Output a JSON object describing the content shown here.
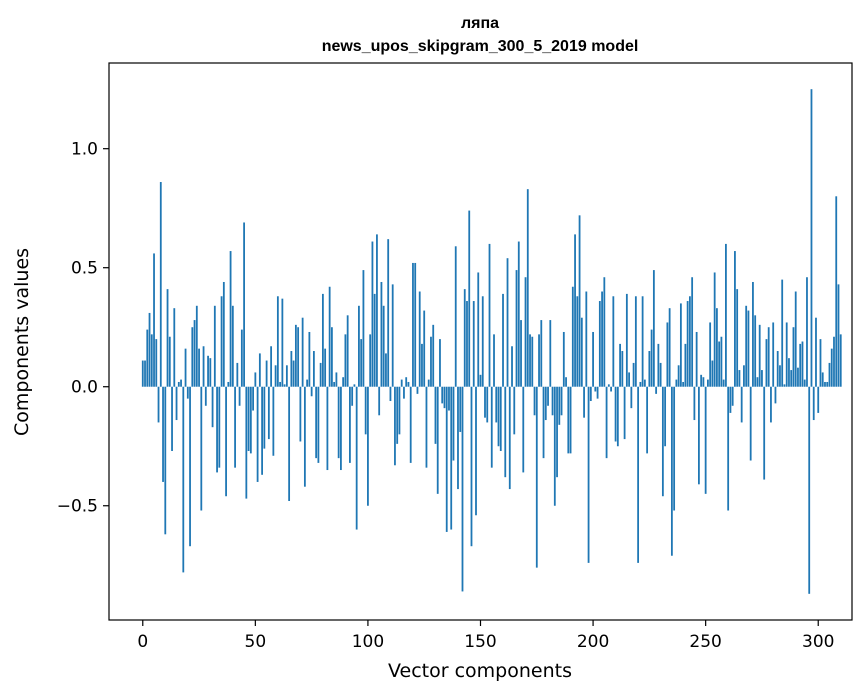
{
  "chart_data": {
    "type": "bar",
    "title": "ляпа",
    "subtitle": "news_upos_skipgram_300_5_2019 model",
    "xlabel": "Vector components",
    "ylabel": "Components values",
    "xlim": [
      -15,
      315
    ],
    "ylim": [
      -0.98,
      1.36
    ],
    "xticks": [
      0,
      50,
      100,
      150,
      200,
      250,
      300
    ],
    "xtick_labels": [
      "0",
      "50",
      "100",
      "150",
      "200",
      "250",
      "300"
    ],
    "yticks": [
      -0.5,
      0.0,
      0.5,
      1.0
    ],
    "ytick_labels": [
      "−0.5",
      "0.0",
      "0.5",
      "1.0"
    ],
    "grid": false,
    "bar_color": "#1f77b4",
    "values": [
      0.11,
      0.11,
      0.24,
      0.31,
      0.22,
      0.56,
      0.2,
      -0.15,
      0.86,
      -0.4,
      -0.62,
      0.41,
      0.21,
      -0.27,
      0.33,
      -0.14,
      0.02,
      0.03,
      -0.78,
      0.16,
      -0.05,
      -0.67,
      0.25,
      0.28,
      0.34,
      0.16,
      -0.52,
      0.17,
      -0.08,
      0.13,
      0.12,
      -0.17,
      0.34,
      -0.36,
      -0.34,
      0.38,
      0.44,
      -0.46,
      0.02,
      0.57,
      0.34,
      -0.34,
      0.1,
      -0.08,
      0.24,
      0.69,
      -0.47,
      -0.27,
      -0.28,
      -0.1,
      0.06,
      -0.4,
      0.14,
      -0.37,
      -0.26,
      0.11,
      -0.22,
      0.17,
      -0.29,
      0.09,
      0.38,
      0.02,
      0.37,
      0.01,
      0.09,
      -0.48,
      0.15,
      0.11,
      0.26,
      0.25,
      -0.23,
      0.29,
      -0.42,
      0.03,
      0.23,
      -0.04,
      0.15,
      -0.3,
      -0.32,
      0.1,
      0.39,
      0.16,
      -0.35,
      0.42,
      0.25,
      0.02,
      0.06,
      -0.3,
      -0.35,
      0.04,
      0.22,
      0.3,
      -0.32,
      -0.08,
      0.01,
      -0.6,
      0.34,
      0.2,
      0.49,
      -0.2,
      -0.5,
      0.22,
      0.61,
      0.39,
      0.64,
      -0.12,
      0.44,
      0.34,
      0.14,
      0.62,
      -0.06,
      0.43,
      -0.33,
      -0.24,
      -0.2,
      0.03,
      -0.05,
      0.04,
      0.02,
      -0.32,
      0.52,
      0.52,
      -0.03,
      0.4,
      0.18,
      0.32,
      -0.34,
      0.03,
      0.21,
      0.26,
      -0.24,
      -0.45,
      0.2,
      -0.07,
      -0.09,
      -0.61,
      -0.1,
      -0.6,
      -0.31,
      0.59,
      -0.43,
      -0.19,
      -0.86,
      0.41,
      0.36,
      0.74,
      -0.67,
      0.36,
      -0.54,
      0.48,
      0.05,
      0.38,
      -0.13,
      -0.15,
      0.6,
      -0.34,
      0.22,
      -0.15,
      -0.25,
      -0.27,
      0.39,
      -0.38,
      0.54,
      -0.43,
      0.17,
      -0.2,
      0.49,
      0.61,
      0.28,
      -0.36,
      0.46,
      0.83,
      0.22,
      0.21,
      -0.12,
      -0.76,
      0.22,
      0.28,
      -0.3,
      -0.14,
      -0.08,
      0.28,
      -0.12,
      -0.5,
      -0.38,
      -0.16,
      -0.12,
      0.23,
      0.04,
      -0.28,
      -0.28,
      0.42,
      0.64,
      0.38,
      0.72,
      0.29,
      -0.13,
      0.4,
      -0.74,
      -0.06,
      0.23,
      -0.02,
      -0.05,
      0.36,
      0.4,
      0.46,
      -0.3,
      0.01,
      -0.02,
      0.38,
      -0.23,
      -0.25,
      0.18,
      0.15,
      -0.22,
      0.39,
      0.06,
      -0.09,
      0.1,
      0.38,
      -0.74,
      0.02,
      0.38,
      0.03,
      -0.28,
      0.15,
      0.24,
      0.49,
      -0.03,
      0.18,
      0.1,
      -0.46,
      -0.25,
      0.27,
      0.33,
      -0.71,
      -0.52,
      0.03,
      0.09,
      0.35,
      0.02,
      0.18,
      0.36,
      0.38,
      0.46,
      -0.14,
      0.23,
      -0.41,
      0.05,
      0.04,
      -0.45,
      0.03,
      0.27,
      0.11,
      0.48,
      0.33,
      0.19,
      0.21,
      0.03,
      0.6,
      -0.52,
      -0.11,
      -0.08,
      0.57,
      0.41,
      0.07,
      -0.15,
      0.09,
      0.34,
      0.32,
      -0.31,
      0.44,
      0.3,
      0.04,
      0.26,
      0.07,
      -0.39,
      0.2,
      0.25,
      -0.15,
      0.27,
      -0.07,
      0.15,
      0.09,
      0.45,
      0.01,
      0.27,
      0.12,
      0.07,
      0.25,
      0.4,
      0.08,
      0.18,
      0.19,
      0.03,
      0.46,
      -0.87,
      1.25,
      -0.14,
      0.29,
      -0.11,
      0.2,
      0.06,
      0.02,
      0.02,
      0.1,
      0.16,
      0.21,
      0.8,
      0.43,
      0.22
    ]
  }
}
